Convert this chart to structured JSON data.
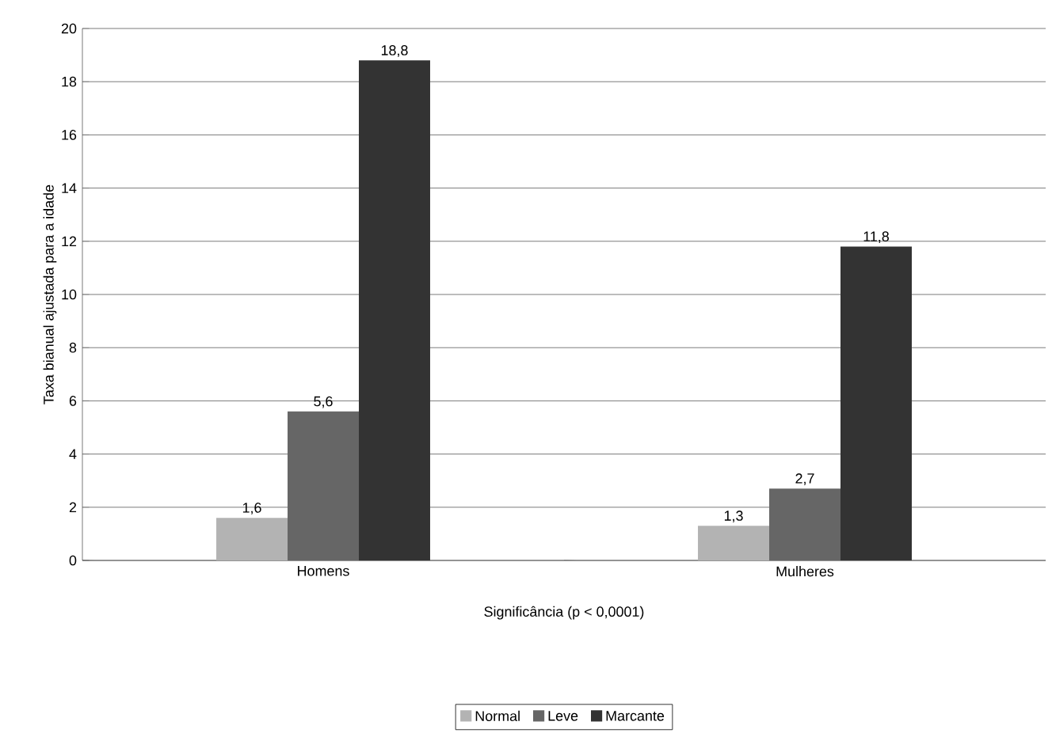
{
  "chart_data": {
    "type": "bar",
    "ylabel": "Taxa bianual ajustada para a idade",
    "xlabel": "Significância (p < 0,0001)",
    "categories": [
      "Homens",
      "Mulheres"
    ],
    "series": [
      {
        "name": "Normal",
        "color": "#b3b3b3",
        "values": [
          1.6,
          1.3
        ],
        "value_labels": [
          "1,6",
          "1,3"
        ]
      },
      {
        "name": "Leve",
        "color": "#666666",
        "values": [
          5.6,
          2.7
        ],
        "value_labels": [
          "5,6",
          "2,7"
        ]
      },
      {
        "name": "Marcante",
        "color": "#333333",
        "values": [
          18.8,
          11.8
        ],
        "value_labels": [
          "18,8",
          "11,8"
        ]
      }
    ],
    "ylim": [
      0,
      20
    ],
    "yticks": [
      0,
      2,
      4,
      6,
      8,
      10,
      12,
      14,
      16,
      18,
      20
    ],
    "grid": "y",
    "legend": "bottom"
  }
}
